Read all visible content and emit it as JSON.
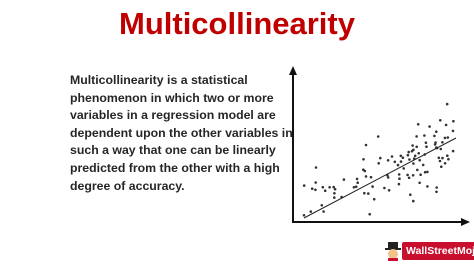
{
  "header": {
    "title": "Multicollinearity"
  },
  "body": {
    "lines": [
      "Multicollinearity is a statistical",
      "phenomenon in which two or more",
      "variables in a regression model are",
      "dependent upon the other variables in",
      "such a way that one can be linearly",
      "predicted from the other with a high",
      "degree of accuracy."
    ]
  },
  "footer": {
    "logo": "WallStreetMojo"
  }
}
